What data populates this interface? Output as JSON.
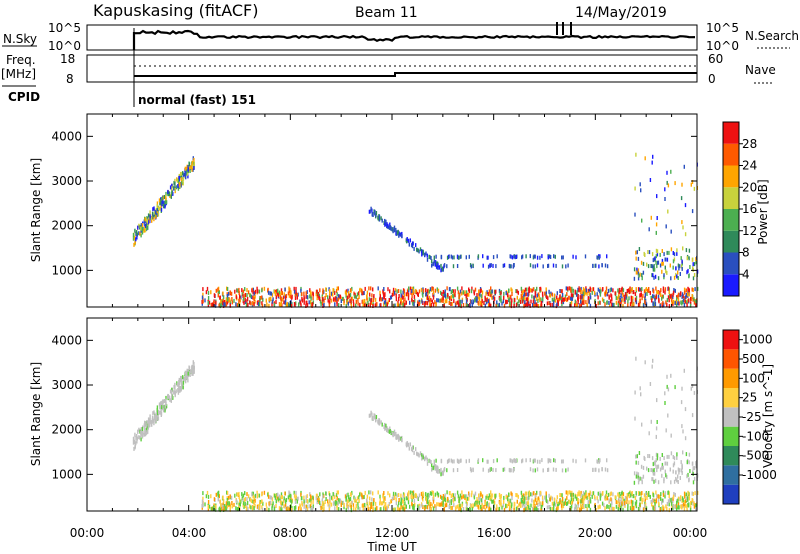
{
  "header": {
    "station": "Kapuskasing (fitACF)",
    "beam": "Beam 11",
    "date": "14/May/2019"
  },
  "panels": {
    "nsky_label": "N.Sky",
    "nsky_ticks": [
      "10^5",
      "10^0"
    ],
    "nsearch_label": "N.Search",
    "nsearch_ticks": [
      "10^5",
      "10^0"
    ],
    "freq_label": "Freq.",
    "freq_unit": "[MHz]",
    "freq_ticks": [
      "18",
      "8"
    ],
    "nave_label": "Nave",
    "nave_ticks": [
      "60",
      "0"
    ],
    "cpid_label": "CPID",
    "cpid_value": "normal (fast) 151"
  },
  "axes": {
    "x_ticks": [
      "00:00",
      "04:00",
      "08:00",
      "12:00",
      "16:00",
      "20:00",
      "00:00"
    ],
    "x_label": "Time UT",
    "y_label": "Slant Range [km]",
    "y_ticks": [
      "1000",
      "2000",
      "3000",
      "4000"
    ]
  },
  "power_scale": {
    "label": "Power [dB]",
    "ticks": [
      "4",
      "8",
      "12",
      "16",
      "20",
      "24",
      "28"
    ],
    "colors": [
      "#1a1aff",
      "#2a4fbf",
      "#2f8a5a",
      "#4caf50",
      "#c8d23c",
      "#ffa500",
      "#ff5a00",
      "#ee1111"
    ]
  },
  "velocity_scale": {
    "label": "Velocity [m s^-1]",
    "ticks": [
      "1000",
      "500",
      "100",
      "25",
      "-25",
      "-100",
      "-500",
      "-1000"
    ],
    "colors": [
      "#1f3fbf",
      "#2f6fa0",
      "#2f8a5a",
      "#5fcf3f",
      "#c0c0c0",
      "#ffd040",
      "#ff9a00",
      "#ff5500",
      "#ee1111"
    ]
  },
  "chart_data": {
    "type": "heatmap",
    "x_range_hours": [
      0,
      24
    ],
    "y_range_km": [
      180,
      4500
    ],
    "scatter_regions": [
      {
        "name": "ground-scatter-arc",
        "t": [
          1.8,
          4.2
        ],
        "r": [
          1700,
          3400
        ],
        "power": "mixed"
      },
      {
        "name": "near-range-band",
        "t": [
          4.5,
          24
        ],
        "r": [
          200,
          600
        ],
        "power": "high"
      },
      {
        "name": "midnight-arc",
        "t": [
          11.0,
          14.0
        ],
        "r": [
          1000,
          2400
        ],
        "power": "low"
      },
      {
        "name": "late-band",
        "t": [
          13.5,
          20.5
        ],
        "r": [
          1000,
          1400
        ],
        "power": "low"
      },
      {
        "name": "late-arc",
        "t": [
          21.5,
          24
        ],
        "r": [
          800,
          3600
        ],
        "power": "mixed"
      }
    ]
  }
}
